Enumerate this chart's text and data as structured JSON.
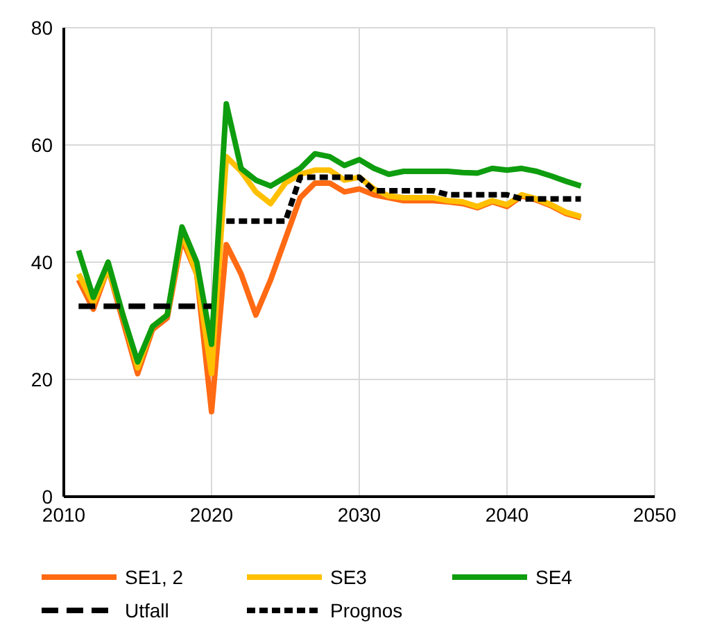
{
  "chart_data": {
    "type": "line",
    "x": [
      2011,
      2012,
      2013,
      2014,
      2015,
      2016,
      2017,
      2018,
      2019,
      2020,
      2021,
      2022,
      2023,
      2024,
      2025,
      2026,
      2027,
      2028,
      2029,
      2030,
      2031,
      2032,
      2033,
      2034,
      2035,
      2036,
      2037,
      2038,
      2039,
      2040,
      2041,
      2042,
      2043,
      2044,
      2045
    ],
    "series": [
      {
        "name": "SE1, 2",
        "color": "#ff6a13",
        "line_style": "solid",
        "values": [
          37,
          32,
          39,
          30,
          21,
          28.5,
          30.5,
          44,
          38,
          14.5,
          43,
          38,
          31,
          37,
          44,
          51,
          53.5,
          53.5,
          52,
          52.5,
          51.5,
          51,
          50.5,
          50.5,
          50.5,
          50.3,
          50,
          49.3,
          50.3,
          49.5,
          51.3,
          50.6,
          49.6,
          48.3,
          47.6
        ]
      },
      {
        "name": "SE3",
        "color": "#ffc000",
        "line_style": "solid",
        "values": [
          38,
          33,
          39,
          31,
          22,
          29,
          31,
          45,
          38,
          21,
          58,
          55.5,
          52,
          50,
          53.5,
          55,
          55.7,
          55.7,
          54,
          54.5,
          52.5,
          51.3,
          51,
          51,
          51,
          50.5,
          50.3,
          49.5,
          50.5,
          49.8,
          51.5,
          50.8,
          49.8,
          48.5,
          47.8
        ]
      },
      {
        "name": "SE4",
        "color": "#0e9d0e",
        "line_style": "solid",
        "values": [
          42,
          34,
          40,
          31,
          23,
          29,
          31,
          46,
          40,
          26,
          67,
          56,
          54,
          53,
          54.5,
          56,
          58.5,
          58,
          56.5,
          57.5,
          56,
          55,
          55.5,
          55.5,
          55.5,
          55.5,
          55.3,
          55.2,
          56,
          55.7,
          56,
          55.5,
          54.7,
          53.8,
          53
        ]
      },
      {
        "name": "Utfall",
        "color": "#000000",
        "line_style": "dashed",
        "values": [
          32.5,
          32.5,
          32.5,
          32.5,
          32.5,
          32.5,
          32.5,
          32.5,
          32.5,
          32.5,
          null,
          null,
          null,
          null,
          null,
          null,
          null,
          null,
          null,
          null,
          null,
          null,
          null,
          null,
          null,
          null,
          null,
          null,
          null,
          null,
          null,
          null,
          null,
          null,
          null
        ]
      },
      {
        "name": "Prognos",
        "color": "#000000",
        "line_style": "dotted",
        "values": [
          null,
          null,
          null,
          null,
          null,
          null,
          null,
          null,
          null,
          null,
          47,
          47,
          47,
          47,
          47,
          54.5,
          54.5,
          54.5,
          54.5,
          54.5,
          52.2,
          52.2,
          52.2,
          52.2,
          52.2,
          51.5,
          51.5,
          51.5,
          51.5,
          51.5,
          50.8,
          50.8,
          50.8,
          50.8,
          50.8
        ]
      }
    ],
    "xlim": [
      2010,
      2050
    ],
    "xticks": [
      2010,
      2020,
      2030,
      2040,
      2050
    ],
    "ylim": [
      0,
      80
    ],
    "yticks": [
      0,
      20,
      40,
      60,
      80
    ],
    "grid": true,
    "legend": "bottom",
    "marker": "none"
  }
}
